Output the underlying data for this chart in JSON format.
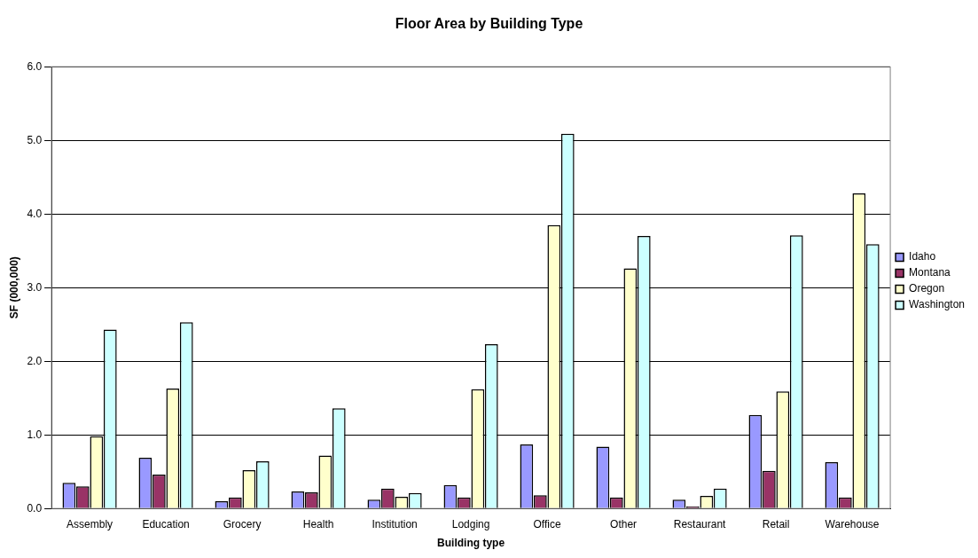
{
  "chart_data": {
    "type": "bar",
    "title": "Floor Area by Building Type",
    "xlabel": "Building type",
    "ylabel": "SF (000,000)",
    "categories": [
      "Assembly",
      "Education",
      "Grocery",
      "Health",
      "Institution",
      "Lodging",
      "Office",
      "Other",
      "Restaurant",
      "Retail",
      "Warehouse"
    ],
    "series": [
      {
        "name": "Idaho",
        "color": "#9999ff",
        "values": [
          0.35,
          0.69,
          0.1,
          0.23,
          0.12,
          0.32,
          0.87,
          0.84,
          0.12,
          1.27,
          0.63
        ]
      },
      {
        "name": "Montana",
        "color": "#993366",
        "values": [
          0.3,
          0.46,
          0.15,
          0.22,
          0.27,
          0.15,
          0.18,
          0.15,
          0.03,
          0.51,
          0.15
        ]
      },
      {
        "name": "Oregon",
        "color": "#ffffcc",
        "values": [
          0.98,
          1.63,
          0.52,
          0.72,
          0.16,
          1.62,
          3.85,
          3.26,
          0.17,
          1.59,
          4.28
        ]
      },
      {
        "name": "Washington",
        "color": "#ccffff",
        "values": [
          2.43,
          2.53,
          0.64,
          1.36,
          0.21,
          2.23,
          5.09,
          3.7,
          0.27,
          3.71,
          3.59
        ]
      }
    ],
    "ylim": [
      0,
      6
    ],
    "yticks": [
      {
        "value": 0,
        "label": "0.0"
      },
      {
        "value": 1,
        "label": "1.0"
      },
      {
        "value": 2,
        "label": "2.0"
      },
      {
        "value": 3,
        "label": "3.0"
      },
      {
        "value": 4,
        "label": "4.0"
      },
      {
        "value": 5,
        "label": "5.0"
      },
      {
        "value": 6,
        "label": "6.0"
      }
    ],
    "grid": "y",
    "legend": "right"
  }
}
